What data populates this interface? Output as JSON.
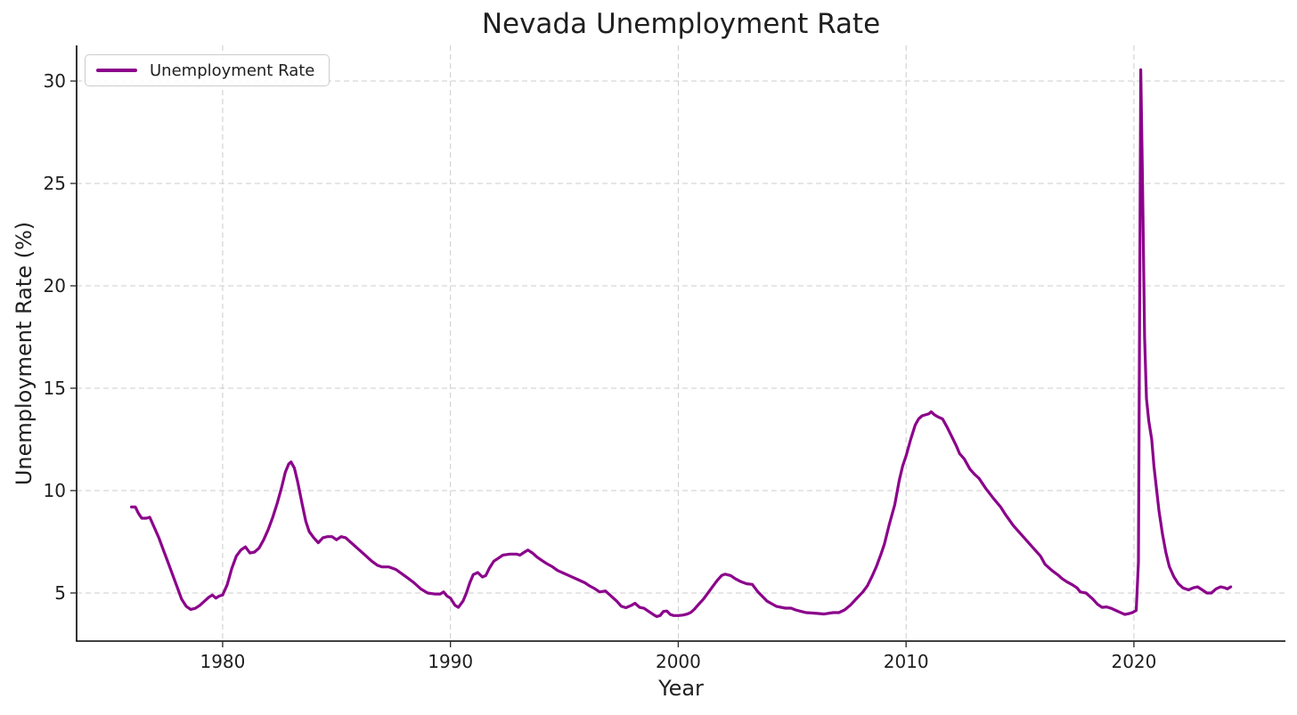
{
  "colors": {
    "line": "#8B008B",
    "grid": "#cccccc",
    "spine": "#000000",
    "tick": "#333333",
    "text": "#1f1f1f",
    "legend_border": "#cccccc",
    "background": "#ffffff"
  },
  "chart_data": {
    "type": "line",
    "title": "Nevada Unemployment Rate",
    "xlabel": "Year",
    "ylabel": "Unemployment Rate (%)",
    "legend": [
      "Unemployment Rate"
    ],
    "legend_position": "upper left",
    "grid": true,
    "grid_style": "dashed",
    "xlim": [
      1973.59,
      2026.65
    ],
    "ylim": [
      2.65,
      31.74
    ],
    "xticks": [
      1980,
      1990,
      2000,
      2010,
      2020
    ],
    "yticks": [
      5,
      10,
      15,
      20,
      25,
      30
    ],
    "series": [
      {
        "name": "Unemployment Rate",
        "color": "#8B008B",
        "points": [
          [
            1976.0,
            9.2
          ],
          [
            1976.17,
            9.2
          ],
          [
            1976.3,
            8.9
          ],
          [
            1976.45,
            8.65
          ],
          [
            1976.65,
            8.65
          ],
          [
            1976.8,
            8.7
          ],
          [
            1977.0,
            8.2
          ],
          [
            1977.2,
            7.7
          ],
          [
            1977.4,
            7.1
          ],
          [
            1977.6,
            6.5
          ],
          [
            1977.8,
            5.9
          ],
          [
            1978.0,
            5.3
          ],
          [
            1978.2,
            4.7
          ],
          [
            1978.4,
            4.35
          ],
          [
            1978.6,
            4.2
          ],
          [
            1978.8,
            4.25
          ],
          [
            1979.0,
            4.4
          ],
          [
            1979.2,
            4.6
          ],
          [
            1979.4,
            4.8
          ],
          [
            1979.55,
            4.9
          ],
          [
            1979.7,
            4.75
          ],
          [
            1979.85,
            4.85
          ],
          [
            1980.0,
            4.9
          ],
          [
            1980.2,
            5.4
          ],
          [
            1980.4,
            6.2
          ],
          [
            1980.6,
            6.8
          ],
          [
            1980.8,
            7.1
          ],
          [
            1981.0,
            7.25
          ],
          [
            1981.2,
            6.95
          ],
          [
            1981.4,
            7.0
          ],
          [
            1981.6,
            7.2
          ],
          [
            1981.8,
            7.6
          ],
          [
            1982.0,
            8.1
          ],
          [
            1982.2,
            8.7
          ],
          [
            1982.4,
            9.4
          ],
          [
            1982.6,
            10.2
          ],
          [
            1982.75,
            10.9
          ],
          [
            1982.9,
            11.3
          ],
          [
            1983.0,
            11.4
          ],
          [
            1983.15,
            11.1
          ],
          [
            1983.3,
            10.4
          ],
          [
            1983.5,
            9.3
          ],
          [
            1983.65,
            8.5
          ],
          [
            1983.8,
            8.0
          ],
          [
            1984.0,
            7.7
          ],
          [
            1984.2,
            7.45
          ],
          [
            1984.4,
            7.7
          ],
          [
            1984.6,
            7.75
          ],
          [
            1984.8,
            7.75
          ],
          [
            1985.0,
            7.6
          ],
          [
            1985.2,
            7.75
          ],
          [
            1985.4,
            7.7
          ],
          [
            1985.7,
            7.4
          ],
          [
            1986.0,
            7.1
          ],
          [
            1986.3,
            6.8
          ],
          [
            1986.55,
            6.55
          ],
          [
            1986.8,
            6.35
          ],
          [
            1987.0,
            6.27
          ],
          [
            1987.3,
            6.27
          ],
          [
            1987.6,
            6.15
          ],
          [
            1987.85,
            5.95
          ],
          [
            1988.1,
            5.75
          ],
          [
            1988.4,
            5.5
          ],
          [
            1988.7,
            5.2
          ],
          [
            1989.0,
            5.0
          ],
          [
            1989.3,
            4.95
          ],
          [
            1989.55,
            4.95
          ],
          [
            1989.7,
            5.05
          ],
          [
            1989.85,
            4.85
          ],
          [
            1990.0,
            4.75
          ],
          [
            1990.2,
            4.4
          ],
          [
            1990.35,
            4.3
          ],
          [
            1990.55,
            4.6
          ],
          [
            1990.7,
            5.0
          ],
          [
            1990.85,
            5.5
          ],
          [
            1991.0,
            5.9
          ],
          [
            1991.2,
            6.0
          ],
          [
            1991.4,
            5.78
          ],
          [
            1991.55,
            5.85
          ],
          [
            1991.7,
            6.2
          ],
          [
            1991.9,
            6.55
          ],
          [
            1992.1,
            6.7
          ],
          [
            1992.3,
            6.85
          ],
          [
            1992.6,
            6.9
          ],
          [
            1992.9,
            6.9
          ],
          [
            1993.05,
            6.85
          ],
          [
            1993.25,
            7.0
          ],
          [
            1993.4,
            7.1
          ],
          [
            1993.6,
            6.95
          ],
          [
            1993.8,
            6.75
          ],
          [
            1994.0,
            6.6
          ],
          [
            1994.2,
            6.45
          ],
          [
            1994.45,
            6.3
          ],
          [
            1994.7,
            6.1
          ],
          [
            1995.0,
            5.95
          ],
          [
            1995.3,
            5.8
          ],
          [
            1995.6,
            5.65
          ],
          [
            1995.9,
            5.5
          ],
          [
            1996.1,
            5.35
          ],
          [
            1996.35,
            5.2
          ],
          [
            1996.55,
            5.05
          ],
          [
            1996.8,
            5.1
          ],
          [
            1996.95,
            4.95
          ],
          [
            1997.1,
            4.8
          ],
          [
            1997.3,
            4.6
          ],
          [
            1997.5,
            4.35
          ],
          [
            1997.7,
            4.28
          ],
          [
            1997.95,
            4.4
          ],
          [
            1998.1,
            4.5
          ],
          [
            1998.3,
            4.3
          ],
          [
            1998.5,
            4.25
          ],
          [
            1998.7,
            4.1
          ],
          [
            1998.9,
            3.95
          ],
          [
            1999.05,
            3.85
          ],
          [
            1999.2,
            3.9
          ],
          [
            1999.35,
            4.1
          ],
          [
            1999.5,
            4.12
          ],
          [
            1999.65,
            3.95
          ],
          [
            1999.8,
            3.9
          ],
          [
            2000.0,
            3.9
          ],
          [
            2000.2,
            3.92
          ],
          [
            2000.4,
            3.97
          ],
          [
            2000.55,
            4.05
          ],
          [
            2000.7,
            4.2
          ],
          [
            2000.9,
            4.45
          ],
          [
            2001.1,
            4.7
          ],
          [
            2001.3,
            5.0
          ],
          [
            2001.5,
            5.3
          ],
          [
            2001.7,
            5.6
          ],
          [
            2001.9,
            5.85
          ],
          [
            2002.05,
            5.92
          ],
          [
            2002.3,
            5.85
          ],
          [
            2002.5,
            5.7
          ],
          [
            2002.75,
            5.55
          ],
          [
            2003.0,
            5.45
          ],
          [
            2003.25,
            5.42
          ],
          [
            2003.5,
            5.05
          ],
          [
            2003.9,
            4.6
          ],
          [
            2004.3,
            4.35
          ],
          [
            2004.7,
            4.26
          ],
          [
            2004.95,
            4.26
          ],
          [
            2005.15,
            4.17
          ],
          [
            2005.4,
            4.1
          ],
          [
            2005.6,
            4.04
          ],
          [
            2005.9,
            4.02
          ],
          [
            2006.15,
            4.0
          ],
          [
            2006.4,
            3.97
          ],
          [
            2006.8,
            4.04
          ],
          [
            2007.05,
            4.04
          ],
          [
            2007.3,
            4.17
          ],
          [
            2007.55,
            4.4
          ],
          [
            2007.8,
            4.7
          ],
          [
            2008.1,
            5.05
          ],
          [
            2008.3,
            5.35
          ],
          [
            2008.5,
            5.8
          ],
          [
            2008.7,
            6.3
          ],
          [
            2008.9,
            6.9
          ],
          [
            2009.05,
            7.4
          ],
          [
            2009.25,
            8.3
          ],
          [
            2009.5,
            9.3
          ],
          [
            2009.7,
            10.5
          ],
          [
            2009.85,
            11.2
          ],
          [
            2010.0,
            11.7
          ],
          [
            2010.2,
            12.5
          ],
          [
            2010.4,
            13.2
          ],
          [
            2010.55,
            13.5
          ],
          [
            2010.7,
            13.65
          ],
          [
            2010.85,
            13.7
          ],
          [
            2011.0,
            13.75
          ],
          [
            2011.1,
            13.85
          ],
          [
            2011.25,
            13.7
          ],
          [
            2011.4,
            13.6
          ],
          [
            2011.6,
            13.5
          ],
          [
            2011.8,
            13.1
          ],
          [
            2012.0,
            12.65
          ],
          [
            2012.2,
            12.2
          ],
          [
            2012.35,
            11.8
          ],
          [
            2012.55,
            11.55
          ],
          [
            2012.8,
            11.05
          ],
          [
            2013.0,
            10.8
          ],
          [
            2013.2,
            10.6
          ],
          [
            2013.5,
            10.1
          ],
          [
            2013.85,
            9.6
          ],
          [
            2014.15,
            9.2
          ],
          [
            2014.35,
            8.85
          ],
          [
            2014.7,
            8.3
          ],
          [
            2015.1,
            7.8
          ],
          [
            2015.5,
            7.3
          ],
          [
            2015.9,
            6.8
          ],
          [
            2016.1,
            6.4
          ],
          [
            2016.4,
            6.1
          ],
          [
            2016.7,
            5.85
          ],
          [
            2016.85,
            5.7
          ],
          [
            2017.05,
            5.55
          ],
          [
            2017.3,
            5.4
          ],
          [
            2017.5,
            5.25
          ],
          [
            2017.65,
            5.05
          ],
          [
            2017.9,
            5.0
          ],
          [
            2018.2,
            4.7
          ],
          [
            2018.4,
            4.45
          ],
          [
            2018.6,
            4.3
          ],
          [
            2018.8,
            4.32
          ],
          [
            2019.0,
            4.25
          ],
          [
            2019.2,
            4.15
          ],
          [
            2019.4,
            4.05
          ],
          [
            2019.6,
            3.95
          ],
          [
            2019.8,
            4.0
          ],
          [
            2019.95,
            4.05
          ],
          [
            2020.1,
            4.15
          ],
          [
            2020.2,
            6.5
          ],
          [
            2020.3,
            30.55
          ],
          [
            2020.38,
            25.0
          ],
          [
            2020.47,
            17.5
          ],
          [
            2020.55,
            14.5
          ],
          [
            2020.65,
            13.4
          ],
          [
            2020.78,
            12.5
          ],
          [
            2020.88,
            11.2
          ],
          [
            2021.0,
            10.0
          ],
          [
            2021.1,
            9.0
          ],
          [
            2021.25,
            7.9
          ],
          [
            2021.4,
            7.0
          ],
          [
            2021.55,
            6.3
          ],
          [
            2021.75,
            5.8
          ],
          [
            2021.95,
            5.45
          ],
          [
            2022.15,
            5.25
          ],
          [
            2022.4,
            5.15
          ],
          [
            2022.6,
            5.25
          ],
          [
            2022.8,
            5.3
          ],
          [
            2023.0,
            5.15
          ],
          [
            2023.2,
            5.0
          ],
          [
            2023.4,
            5.0
          ],
          [
            2023.6,
            5.2
          ],
          [
            2023.8,
            5.3
          ],
          [
            2024.0,
            5.25
          ],
          [
            2024.1,
            5.2
          ],
          [
            2024.25,
            5.3
          ]
        ]
      }
    ]
  }
}
